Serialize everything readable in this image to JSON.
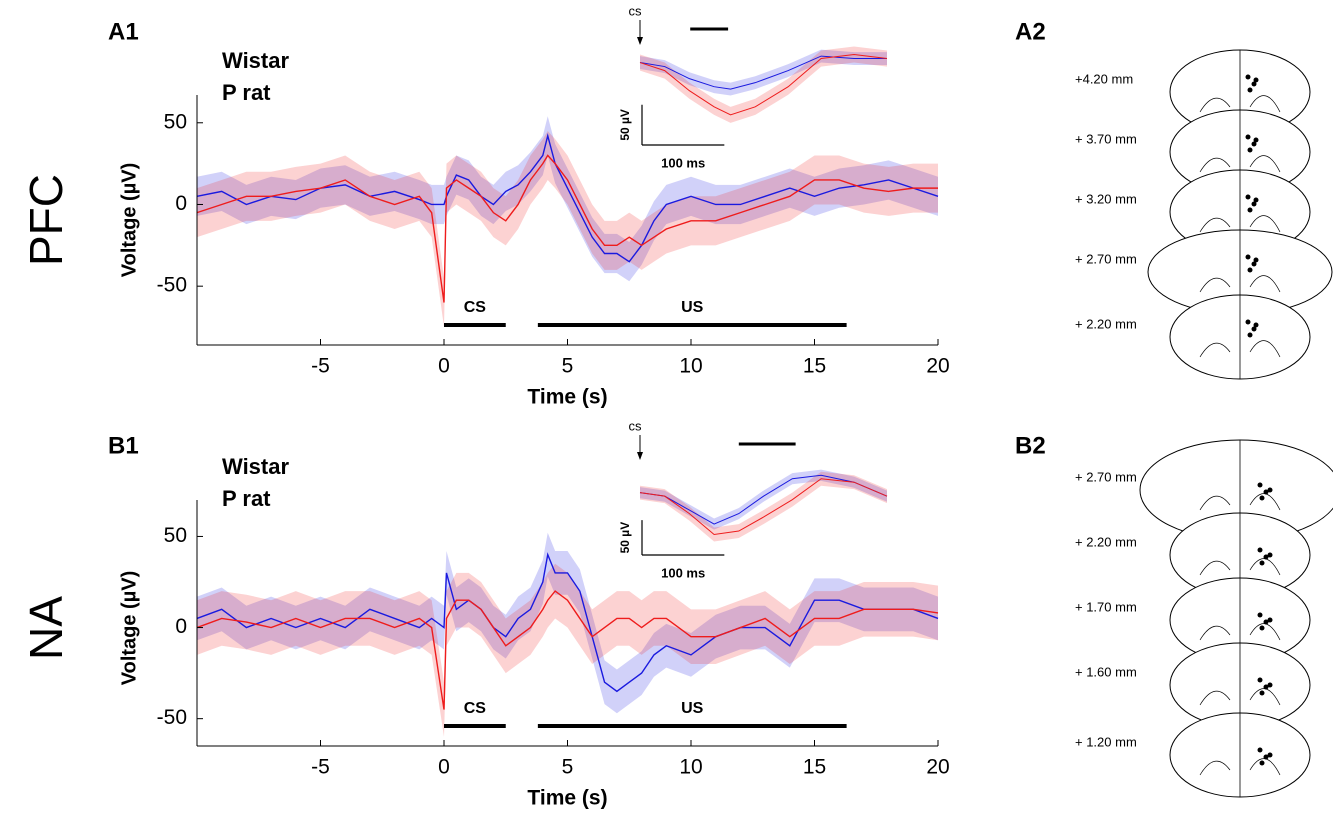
{
  "chart_data": [
    {
      "type": "line",
      "panel": "A1",
      "row_label": "PFC",
      "xlabel": "Time (s)",
      "ylabel": "Voltage (µV)",
      "xlim": [
        -10,
        20
      ],
      "ylim": [
        -86,
        67
      ],
      "xticks": [
        -5,
        0,
        5,
        10,
        15,
        20
      ],
      "yticks": [
        -50,
        0,
        50
      ],
      "x": [
        -10,
        -9,
        -8,
        -7,
        -6,
        -5,
        -4,
        -3,
        -2,
        -1,
        -0.5,
        0,
        0.1,
        0.5,
        1,
        1.5,
        2,
        2.5,
        3,
        3.5,
        4,
        4.2,
        4.5,
        5,
        5.5,
        6,
        6.5,
        7,
        7.5,
        8,
        8.5,
        9,
        10,
        11,
        12,
        13,
        14,
        15,
        16,
        17,
        18,
        19,
        20
      ],
      "series": [
        {
          "name": "Wistar",
          "color": "#1a1adf",
          "error": 12,
          "values": [
            5,
            8,
            0,
            5,
            3,
            10,
            12,
            5,
            8,
            3,
            0,
            0,
            5,
            18,
            15,
            5,
            0,
            8,
            12,
            20,
            30,
            42,
            25,
            10,
            -5,
            -20,
            -30,
            -30,
            -35,
            -25,
            -10,
            0,
            5,
            0,
            0,
            5,
            10,
            5,
            10,
            12,
            15,
            10,
            5
          ]
        },
        {
          "name": "P rat",
          "color": "#ee1c1c",
          "error": 15,
          "values": [
            -5,
            0,
            5,
            5,
            8,
            10,
            15,
            5,
            0,
            5,
            -5,
            -60,
            10,
            15,
            10,
            5,
            -5,
            -10,
            0,
            15,
            25,
            30,
            25,
            15,
            0,
            -15,
            -25,
            -25,
            -20,
            -25,
            -20,
            -15,
            -10,
            -10,
            -5,
            0,
            5,
            15,
            15,
            10,
            8,
            10,
            10
          ]
        }
      ],
      "events": [
        {
          "label": "CS",
          "start": 0,
          "end": 2.5
        },
        {
          "label": "US",
          "start": 3.8,
          "end": 16.3
        }
      ],
      "inset": {
        "xlim": [
          0,
          300
        ],
        "ylim": [
          -90,
          28
        ],
        "x": [
          0,
          30,
          60,
          90,
          110,
          140,
          180,
          220,
          260,
          300
        ],
        "series": [
          {
            "name": "Wistar",
            "color": "#1a1adf",
            "error": 8,
            "values": [
              0,
              -5,
              -20,
              -30,
              -33,
              -25,
              -10,
              8,
              5,
              5
            ]
          },
          {
            "name": "P rat",
            "color": "#ee1c1c",
            "error": 10,
            "values": [
              0,
              -10,
              -35,
              -55,
              -65,
              -55,
              -30,
              5,
              10,
              5
            ]
          }
        ],
        "cs_label": "cs",
        "sig_bar": [
          61,
          107
        ],
        "scalebar_y": {
          "value": 50,
          "label": "50 µV"
        },
        "scalebar_x": {
          "value": 100,
          "label": "100 ms"
        }
      }
    },
    {
      "type": "line",
      "panel": "B1",
      "row_label": "NA",
      "xlabel": "Time (s)",
      "ylabel": "Voltage (µV)",
      "xlim": [
        -10,
        20
      ],
      "ylim": [
        -65,
        70
      ],
      "xticks": [
        -5,
        0,
        5,
        10,
        15,
        20
      ],
      "yticks": [
        -50,
        0,
        50
      ],
      "x": [
        -10,
        -9,
        -8,
        -7,
        -6,
        -5,
        -4,
        -3,
        -2,
        -1,
        -0.5,
        0,
        0.1,
        0.5,
        1,
        1.5,
        2,
        2.5,
        3,
        3.5,
        4,
        4.2,
        4.5,
        5,
        5.5,
        6,
        6.5,
        7,
        7.5,
        8,
        8.5,
        9,
        10,
        11,
        12,
        13,
        14,
        15,
        16,
        17,
        18,
        19,
        20
      ],
      "series": [
        {
          "name": "Wistar",
          "color": "#1a1adf",
          "error": 12,
          "values": [
            5,
            10,
            0,
            5,
            0,
            5,
            0,
            10,
            5,
            0,
            5,
            0,
            30,
            10,
            15,
            10,
            0,
            -5,
            5,
            10,
            25,
            40,
            30,
            30,
            20,
            -5,
            -30,
            -35,
            -30,
            -25,
            -15,
            -10,
            -15,
            -5,
            0,
            0,
            -10,
            15,
            15,
            10,
            10,
            10,
            5
          ]
        },
        {
          "name": "P rat",
          "color": "#ee1c1c",
          "error": 15,
          "values": [
            0,
            5,
            3,
            0,
            5,
            0,
            5,
            5,
            0,
            5,
            0,
            -45,
            5,
            15,
            15,
            10,
            0,
            -10,
            -5,
            0,
            10,
            15,
            20,
            15,
            5,
            -5,
            0,
            5,
            5,
            0,
            5,
            5,
            -5,
            -5,
            0,
            5,
            -5,
            5,
            5,
            10,
            10,
            10,
            8
          ]
        }
      ],
      "events": [
        {
          "label": "CS",
          "start": 0,
          "end": 2.5
        },
        {
          "label": "US",
          "start": 3.8,
          "end": 16.3
        }
      ],
      "inset": {
        "xlim": [
          0,
          300
        ],
        "ylim": [
          -75,
          54
        ],
        "x": [
          0,
          30,
          60,
          90,
          120,
          150,
          185,
          220,
          260,
          300
        ],
        "series": [
          {
            "name": "Wistar",
            "color": "#1a1adf",
            "error": 8,
            "values": [
              0,
              -5,
              -25,
              -45,
              -30,
              -5,
              20,
              25,
              15,
              -5
            ]
          },
          {
            "name": "P rat",
            "color": "#ee1c1c",
            "error": 10,
            "values": [
              0,
              -5,
              -30,
              -60,
              -55,
              -35,
              -10,
              20,
              15,
              -5
            ]
          }
        ],
        "cs_label": "cs",
        "sig_bar": [
          120,
          189
        ],
        "scalebar_y": {
          "value": 50,
          "label": "50 µV"
        },
        "scalebar_x": {
          "value": 100,
          "label": "100 ms"
        }
      }
    }
  ],
  "atlas": [
    {
      "panel": "A2",
      "levels": [
        "+4.20 mm",
        "+ 3.70 mm",
        "+ 3.20 mm",
        "+ 2.70 mm",
        "+ 2.20 mm"
      ]
    },
    {
      "panel": "B2",
      "levels": [
        "+ 2.70 mm",
        "+ 2.20 mm",
        "+ 1.70 mm",
        "+ 1.60 mm",
        "+ 1.20 mm"
      ]
    }
  ]
}
